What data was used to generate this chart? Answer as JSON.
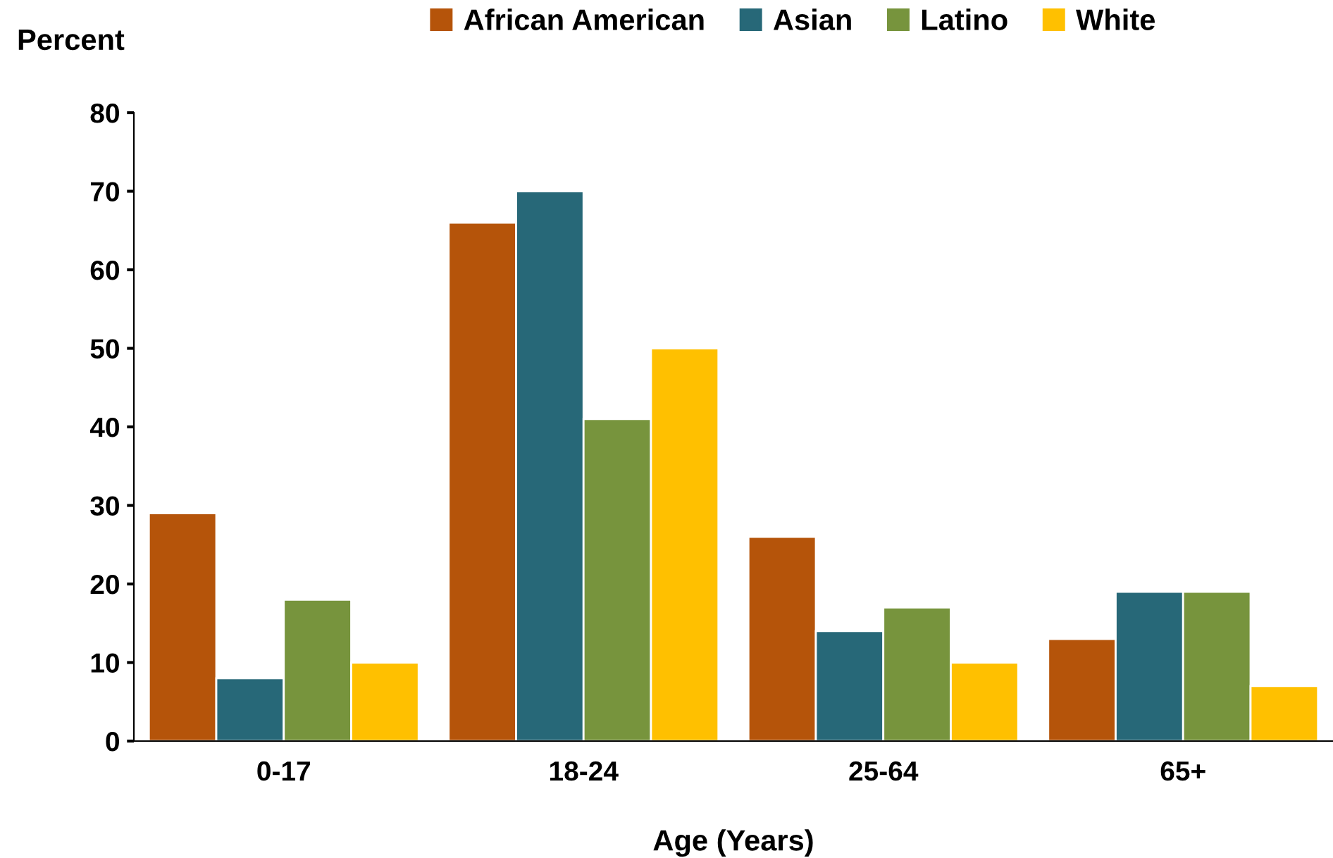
{
  "chart_data": {
    "type": "bar",
    "ylabel": "Percent",
    "xlabel": "Age (Years)",
    "categories": [
      "0-17",
      "18-24",
      "25-64",
      "65+"
    ],
    "series": [
      {
        "name": "African American",
        "color": "#b5540a",
        "values": [
          29,
          66,
          26,
          13
        ]
      },
      {
        "name": "Asian",
        "color": "#276878",
        "values": [
          8,
          70,
          14,
          19
        ]
      },
      {
        "name": "Latino",
        "color": "#77943d",
        "values": [
          18,
          41,
          17,
          19
        ]
      },
      {
        "name": "White",
        "color": "#ffc000",
        "values": [
          10,
          50,
          10,
          7
        ]
      }
    ],
    "ylim": [
      0,
      80
    ],
    "yticks": [
      0,
      10,
      20,
      30,
      40,
      50,
      60,
      70,
      80
    ],
    "grid": false,
    "legend": "top"
  }
}
